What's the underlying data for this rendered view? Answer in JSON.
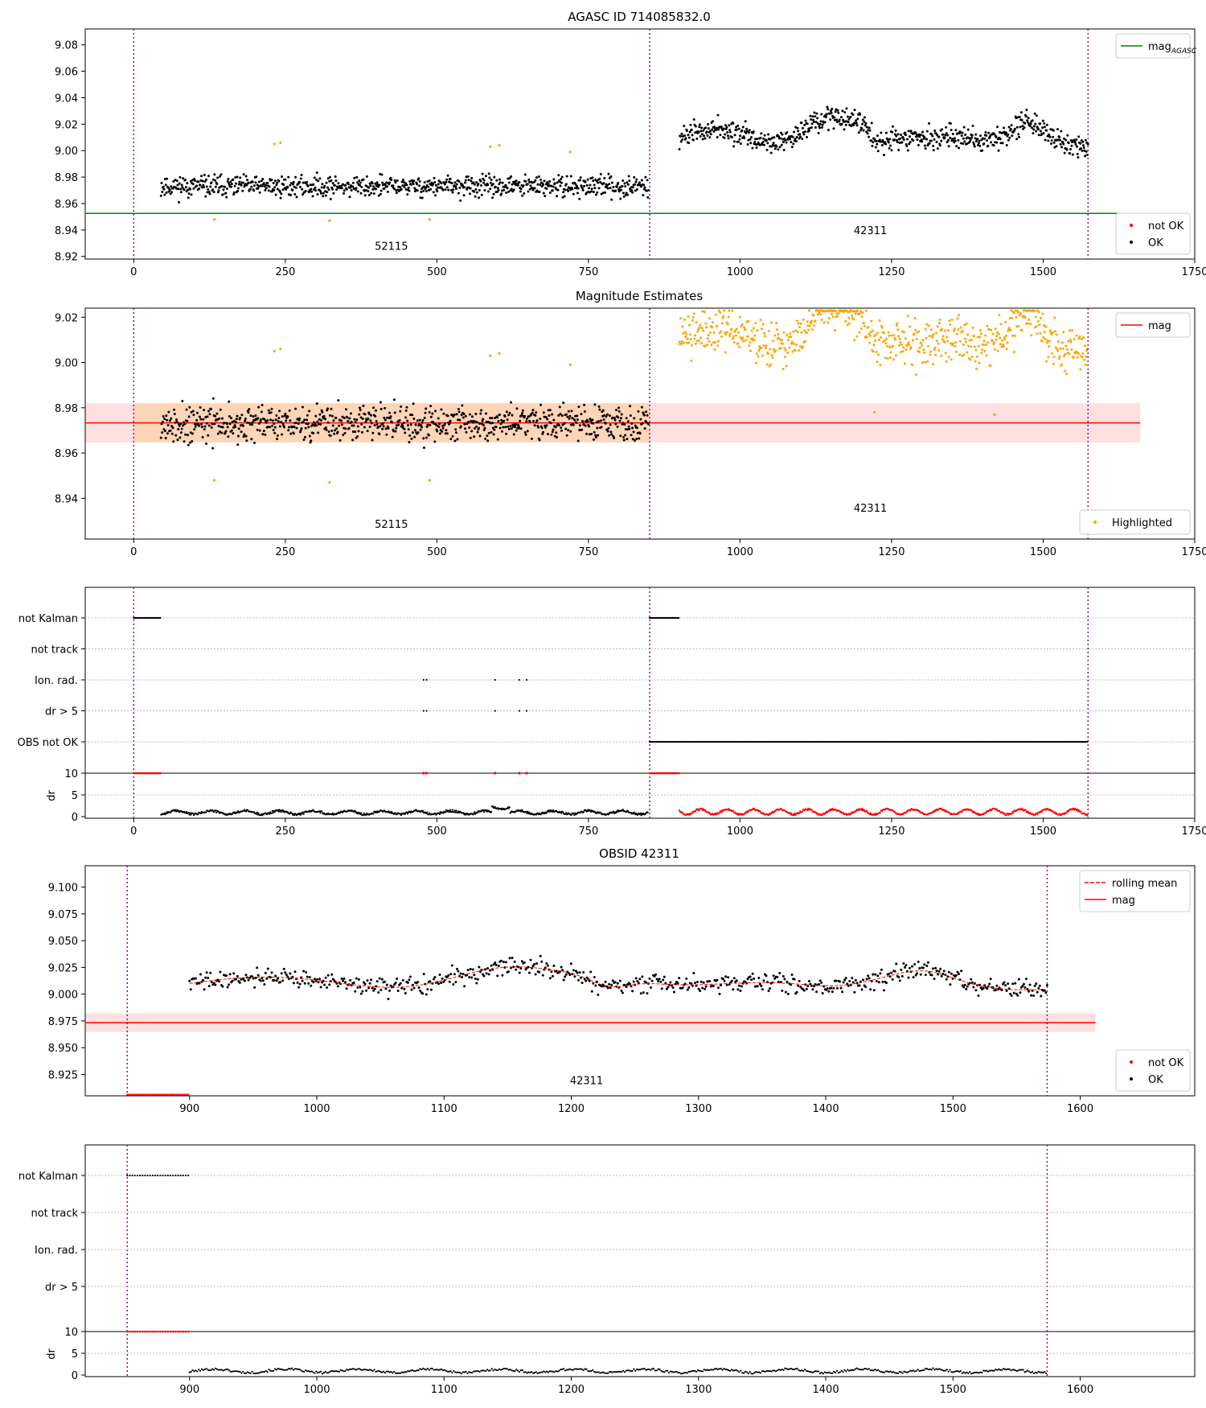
{
  "chart_data": [
    {
      "id": "p1",
      "type": "scatter",
      "title": "AGASC ID 714085832.0",
      "xlim": [
        -80,
        1750
      ],
      "ylim": [
        8.918,
        9.092
      ],
      "xticks": [
        0,
        250,
        500,
        750,
        1000,
        1250,
        1500,
        1750
      ],
      "yticks": [
        8.92,
        8.94,
        8.96,
        8.98,
        9.0,
        9.02,
        9.04,
        9.06,
        9.08
      ],
      "ytick_decimals": 2,
      "vlines": [
        0,
        851,
        1574
      ],
      "obs_labels": [
        {
          "text": "52115",
          "x": 425,
          "y": 8.925
        },
        {
          "text": "42311",
          "x": 1215,
          "y": 8.937
        }
      ],
      "hline": {
        "label": "mag_AGASC",
        "y": 8.9525,
        "x_end": 1660,
        "color": "#008000"
      },
      "series": [
        {
          "name": "OK",
          "color": "#000000",
          "segments": [
            {
              "x0": 45,
              "x1": 849,
              "n": 820,
              "base": 8.973,
              "slope": 0.0,
              "noise": 0.0075,
              "seed": 11
            },
            {
              "x0": 900,
              "x1": 1574,
              "n": 700,
              "base": 9.01,
              "slope": 0.0,
              "noise": 0.008,
              "seed": 12,
              "wave": true
            }
          ]
        },
        {
          "name": "Highlighted (orange outliers)",
          "color": "#ffa500",
          "points": [
            [
              133,
              8.948
            ],
            [
              232,
              9.005
            ],
            [
              242,
              9.006
            ],
            [
              323,
              8.947
            ],
            [
              488,
              8.948
            ],
            [
              588,
              9.003
            ],
            [
              603,
              9.004
            ],
            [
              720,
              8.999
            ]
          ]
        }
      ],
      "legend_upper": [
        {
          "label": "mag",
          "sub": "AGASC",
          "color": "#008000",
          "kind": "line"
        }
      ],
      "legend_lower": [
        {
          "label": "not OK",
          "color": "#ff0000",
          "kind": "dot"
        },
        {
          "label": "OK",
          "color": "#000000",
          "kind": "dot"
        }
      ]
    },
    {
      "id": "p2",
      "type": "scatter",
      "title": "Magnitude Estimates",
      "xlim": [
        -80,
        1750
      ],
      "ylim": [
        8.922,
        9.024
      ],
      "xticks": [
        0,
        250,
        500,
        750,
        1000,
        1250,
        1500,
        1750
      ],
      "yticks": [
        8.94,
        8.96,
        8.98,
        9.0,
        9.02
      ],
      "ytick_decimals": 2,
      "vlines": [
        0,
        851,
        1574
      ],
      "obs_labels": [
        {
          "text": "52115",
          "x": 425,
          "y": 8.927
        },
        {
          "text": "42311",
          "x": 1215,
          "y": 8.934
        }
      ],
      "mag": {
        "label": "mag",
        "y": 8.9733,
        "band": [
          8.9647,
          8.982
        ],
        "band_orange_x": [
          0,
          851
        ],
        "x_end": 1660,
        "color": "#ff0000"
      },
      "series": [
        {
          "name": "OK",
          "color": "#000000",
          "segments": [
            {
              "x0": 45,
              "x1": 849,
              "n": 820,
              "base": 8.973,
              "slope": 0.0,
              "noise": 0.0075,
              "seed": 21
            }
          ]
        },
        {
          "name": "Highlighted",
          "color": "#ffa500",
          "segments": [
            {
              "x0": 900,
              "x1": 1574,
              "n": 650,
              "base": 9.01,
              "slope": 0.0,
              "noise": 0.009,
              "seed": 22,
              "wave": true,
              "clip_top": 9.023
            }
          ],
          "points": [
            [
              133,
              8.948
            ],
            [
              232,
              9.005
            ],
            [
              242,
              9.006
            ],
            [
              323,
              8.947
            ],
            [
              488,
              8.948
            ],
            [
              588,
              9.003
            ],
            [
              603,
              9.004
            ],
            [
              720,
              8.999
            ],
            [
              1420,
              8.977
            ],
            [
              1222,
              8.978
            ]
          ]
        }
      ],
      "legend_upper": [
        {
          "label": "mag",
          "color": "#ff0000",
          "kind": "line"
        }
      ],
      "legend_lower": [
        {
          "label": "Highlighted",
          "color": "#ffa500",
          "kind": "dot"
        }
      ]
    },
    {
      "id": "p3",
      "type": "scatter",
      "title": "",
      "xlim": [
        -80,
        1750
      ],
      "xticks": [
        0,
        250,
        500,
        750,
        1000,
        1250,
        1500,
        1750
      ],
      "vlines": [
        0,
        851,
        1574
      ],
      "flag_rows": [
        "not Kalman",
        "not track",
        "Ion. rad.",
        "dr > 5",
        "OBS not OK"
      ],
      "flag_points": {
        "not Kalman": [
          [
            0,
            45
          ],
          [
            851,
            900
          ]
        ],
        "Ion. rad.": [
          [
            478,
            478
          ],
          [
            483,
            483
          ],
          [
            596,
            596
          ],
          [
            636,
            636
          ],
          [
            648,
            648
          ]
        ],
        "dr > 5": [
          [
            478,
            478
          ],
          [
            483,
            483
          ],
          [
            596,
            596
          ],
          [
            636,
            636
          ],
          [
            648,
            648
          ]
        ],
        "OBS not OK": [
          [
            851,
            1574
          ]
        ]
      },
      "dr": {
        "ylabel": "dr",
        "ylim": [
          0,
          10
        ],
        "yticks": [
          0,
          5,
          10
        ],
        "red_top": [
          [
            0,
            45
          ],
          [
            851,
            900
          ]
        ],
        "red_top_points": [
          478,
          483,
          596,
          636,
          648
        ],
        "black": [
          [
            45,
            849
          ]
        ],
        "red_low": [
          [
            900,
            1574
          ]
        ]
      }
    },
    {
      "id": "p4",
      "type": "scatter",
      "title": "OBSID 42311",
      "xlim": [
        818,
        1690
      ],
      "ylim": [
        8.905,
        9.12
      ],
      "xticks": [
        900,
        1000,
        1100,
        1200,
        1300,
        1400,
        1500,
        1600
      ],
      "yticks": [
        8.925,
        8.95,
        8.975,
        9.0,
        9.025,
        9.05,
        9.075,
        9.1
      ],
      "ytick_decimals": 3,
      "vlines": [
        851,
        1574
      ],
      "obs_labels": [
        {
          "text": "42311",
          "x": 1212,
          "y": 8.916
        }
      ],
      "mag": {
        "label": "mag",
        "y": 8.9733,
        "band": [
          8.9647,
          8.982
        ],
        "x_end": 1612,
        "color": "#ff0000"
      },
      "rolling_mean": {
        "label": "rolling mean",
        "color": "#ff0000"
      },
      "series": [
        {
          "name": "OK",
          "color": "#000000",
          "segments": [
            {
              "x0": 900,
              "x1": 1574,
              "n": 700,
              "base": 9.01,
              "slope": 0.0,
              "noise": 0.008,
              "seed": 41,
              "wave": true
            }
          ]
        },
        {
          "name": "not OK",
          "color": "#ff0000",
          "line_at": 8.906,
          "x_range": [
            851,
            900
          ]
        }
      ],
      "legend_upper": [
        {
          "label": "rolling mean",
          "color": "#ff0000",
          "kind": "dash"
        },
        {
          "label": "mag",
          "color": "#ff0000",
          "kind": "line"
        }
      ],
      "legend_lower": [
        {
          "label": "not OK",
          "color": "#ff0000",
          "kind": "dot"
        },
        {
          "label": "OK",
          "color": "#000000",
          "kind": "dot"
        }
      ]
    },
    {
      "id": "p5",
      "type": "scatter",
      "title": "",
      "xlim": [
        818,
        1690
      ],
      "xticks": [
        900,
        1000,
        1100,
        1200,
        1300,
        1400,
        1500,
        1600
      ],
      "vlines": [
        851,
        1574
      ],
      "flag_rows": [
        "not Kalman",
        "not track",
        "Ion. rad.",
        "dr > 5"
      ],
      "flag_points": {
        "not Kalman": [
          [
            851,
            900
          ]
        ]
      },
      "dr": {
        "ylabel": "dr",
        "ylim": [
          0,
          10
        ],
        "yticks": [
          0,
          5,
          10
        ],
        "red_top": [
          [
            851,
            900
          ]
        ],
        "black": [
          [
            900,
            1574
          ]
        ]
      }
    }
  ]
}
